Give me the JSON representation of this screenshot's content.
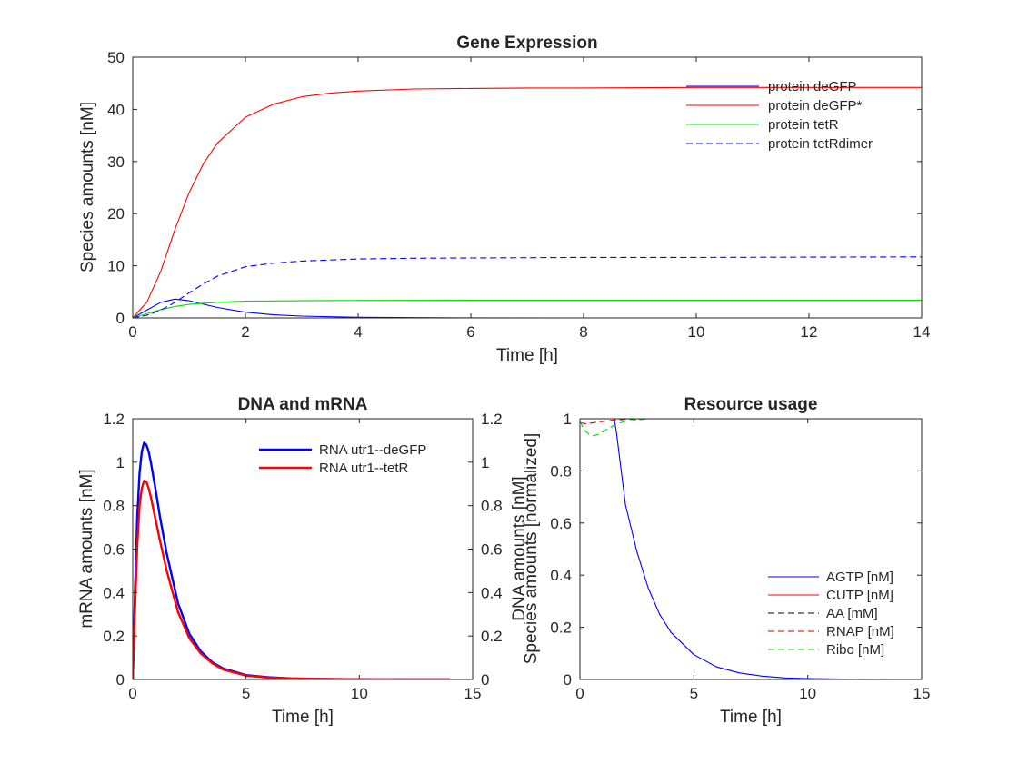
{
  "chart_data": [
    {
      "type": "line",
      "title": "Gene Expression",
      "xlabel": "Time [h]",
      "ylabel": "Species amounts [nM]",
      "xlim": [
        0,
        14
      ],
      "ylim": [
        0,
        50
      ],
      "xticks": [
        0,
        2,
        4,
        6,
        8,
        10,
        12,
        14
      ],
      "yticks": [
        0,
        10,
        20,
        30,
        40,
        50
      ],
      "grid": false,
      "legend_position": "top-right",
      "series": [
        {
          "name": "protein deGFP",
          "color": "#0000ff",
          "style": "solid",
          "x": [
            0,
            0.25,
            0.5,
            0.75,
            1,
            1.5,
            2,
            2.5,
            3,
            4,
            5,
            6,
            8,
            10,
            12,
            14
          ],
          "y": [
            0,
            1.5,
            3.0,
            3.6,
            3.3,
            2.0,
            1.1,
            0.6,
            0.35,
            0.12,
            0.05,
            0.02,
            0,
            0,
            0,
            0
          ]
        },
        {
          "name": "protein deGFP*",
          "color": "#ff0000",
          "style": "solid",
          "x": [
            0,
            0.25,
            0.5,
            0.75,
            1,
            1.25,
            1.5,
            2,
            2.5,
            3,
            3.5,
            4,
            5,
            6,
            7,
            8,
            10,
            12,
            14
          ],
          "y": [
            0,
            3.0,
            9.0,
            17.0,
            24.0,
            29.5,
            33.5,
            38.5,
            41.0,
            42.4,
            43.1,
            43.5,
            43.9,
            44.0,
            44.1,
            44.1,
            44.2,
            44.2,
            44.2
          ]
        },
        {
          "name": "protein tetR",
          "color": "#00dd00",
          "style": "solid",
          "x": [
            0,
            0.25,
            0.5,
            0.75,
            1,
            1.5,
            2,
            3,
            4,
            6,
            8,
            10,
            12,
            14
          ],
          "y": [
            0,
            0.8,
            1.6,
            2.2,
            2.6,
            3.0,
            3.2,
            3.3,
            3.35,
            3.4,
            3.4,
            3.4,
            3.4,
            3.4
          ]
        },
        {
          "name": "protein tetRdimer",
          "color": "#0000ff",
          "style": "dashed",
          "x": [
            0,
            0.25,
            0.5,
            0.75,
            1,
            1.25,
            1.5,
            2,
            2.5,
            3,
            4,
            5,
            6,
            8,
            10,
            12,
            14
          ],
          "y": [
            0,
            0.5,
            1.5,
            3.0,
            4.8,
            6.5,
            8.0,
            9.8,
            10.5,
            10.9,
            11.3,
            11.45,
            11.5,
            11.6,
            11.6,
            11.65,
            11.7
          ]
        }
      ]
    },
    {
      "type": "line",
      "title": "DNA and mRNA",
      "xlabel": "Time [h]",
      "ylabel": "mRNA amounts [nM]",
      "ylabel_right": "DNA amounts [nM]",
      "xlim": [
        0,
        15
      ],
      "ylim": [
        0,
        1.2
      ],
      "ylim_right": [
        0,
        1.2
      ],
      "xticks": [
        0,
        5,
        10,
        15
      ],
      "yticks": [
        0,
        0.2,
        0.4,
        0.6,
        0.8,
        1,
        1.2
      ],
      "yticks_right": [
        0,
        0.2,
        0.4,
        0.6,
        0.8,
        1,
        1.2
      ],
      "grid": false,
      "legend_position": "top-right",
      "series": [
        {
          "name": "RNA utr1--deGFP",
          "color": "#0000ff",
          "style": "solid",
          "thick": true,
          "x": [
            0,
            0.1,
            0.2,
            0.3,
            0.4,
            0.5,
            0.6,
            0.7,
            0.8,
            1.0,
            1.2,
            1.5,
            2.0,
            2.5,
            3.0,
            3.5,
            4.0,
            5.0,
            6.0,
            7.0,
            8.0,
            10.0,
            12.0,
            14.0
          ],
          "y": [
            0,
            0.4,
            0.75,
            0.95,
            1.05,
            1.09,
            1.08,
            1.05,
            1.0,
            0.88,
            0.75,
            0.58,
            0.35,
            0.21,
            0.13,
            0.08,
            0.05,
            0.02,
            0.01,
            0.005,
            0.003,
            0.001,
            0,
            0
          ]
        },
        {
          "name": "RNA utr1--tetR",
          "color": "#ff0000",
          "style": "solid",
          "thick": true,
          "x": [
            0,
            0.1,
            0.2,
            0.3,
            0.4,
            0.5,
            0.6,
            0.7,
            0.8,
            1.0,
            1.2,
            1.5,
            2.0,
            2.5,
            3.0,
            3.5,
            4.0,
            5.0,
            6.0,
            7.0,
            8.0,
            10.0,
            12.0,
            14.0
          ],
          "y": [
            0,
            0.33,
            0.62,
            0.8,
            0.88,
            0.915,
            0.91,
            0.88,
            0.84,
            0.74,
            0.64,
            0.5,
            0.31,
            0.19,
            0.12,
            0.075,
            0.045,
            0.018,
            0.008,
            0.004,
            0.002,
            0.001,
            0,
            0
          ]
        }
      ]
    },
    {
      "type": "line",
      "title": "Resource usage",
      "xlabel": "Time [h]",
      "ylabel": "Species amounts [normalized]",
      "xlim": [
        0,
        15
      ],
      "ylim": [
        0,
        1
      ],
      "xticks": [
        0,
        5,
        10,
        15
      ],
      "yticks": [
        0,
        0.2,
        0.4,
        0.6,
        0.8,
        1
      ],
      "grid": false,
      "legend_position": "bottom-right",
      "series": [
        {
          "name": "AGTP [nM]",
          "color": "#0000ff",
          "style": "solid",
          "x": [
            0,
            0.5,
            1.0,
            1.5,
            1.6,
            2.0,
            2.5,
            3.0,
            3.5,
            4.0,
            5.0,
            6.0,
            7.0,
            8.0,
            9.0,
            10.0,
            12.0,
            14.0
          ],
          "y": [
            1,
            1,
            1,
            1,
            0.95,
            0.67,
            0.49,
            0.35,
            0.25,
            0.18,
            0.095,
            0.048,
            0.025,
            0.013,
            0.006,
            0.003,
            0.001,
            0
          ]
        },
        {
          "name": "CUTP [nM]",
          "color": "#ff0000",
          "style": "solid",
          "x": [
            0,
            2,
            4,
            6,
            8,
            10,
            12,
            14
          ],
          "y": [
            1,
            1,
            1,
            1,
            1,
            1,
            1,
            1
          ]
        },
        {
          "name": "AA [mM]",
          "color": "#000000",
          "style": "dashed",
          "x": [
            0,
            2,
            4,
            6,
            8,
            10,
            12,
            14
          ],
          "y": [
            1,
            1,
            1,
            1,
            1,
            1,
            1,
            1
          ]
        },
        {
          "name": "RNAP [nM]",
          "color": "#cc0000",
          "style": "dashed",
          "x": [
            0,
            0.3,
            0.6,
            1.0,
            1.5,
            2.0,
            3.0,
            4.0,
            6.0,
            8.0,
            10.0,
            12.0,
            14.0
          ],
          "y": [
            0.985,
            0.98,
            0.985,
            0.99,
            0.995,
            0.998,
            1,
            1,
            1,
            1,
            1,
            1,
            1
          ]
        },
        {
          "name": "Ribo [nM]",
          "color": "#00dd00",
          "style": "dashed",
          "x": [
            0,
            0.2,
            0.4,
            0.6,
            0.8,
            1.0,
            1.3,
            1.6,
            2.0,
            2.5,
            3.0,
            4.0,
            6.0,
            8.0,
            10.0,
            12.0,
            14.0
          ],
          "y": [
            0.99,
            0.955,
            0.94,
            0.935,
            0.94,
            0.95,
            0.965,
            0.98,
            0.99,
            0.995,
            1,
            1,
            1,
            1,
            1,
            1,
            1
          ]
        }
      ]
    }
  ]
}
